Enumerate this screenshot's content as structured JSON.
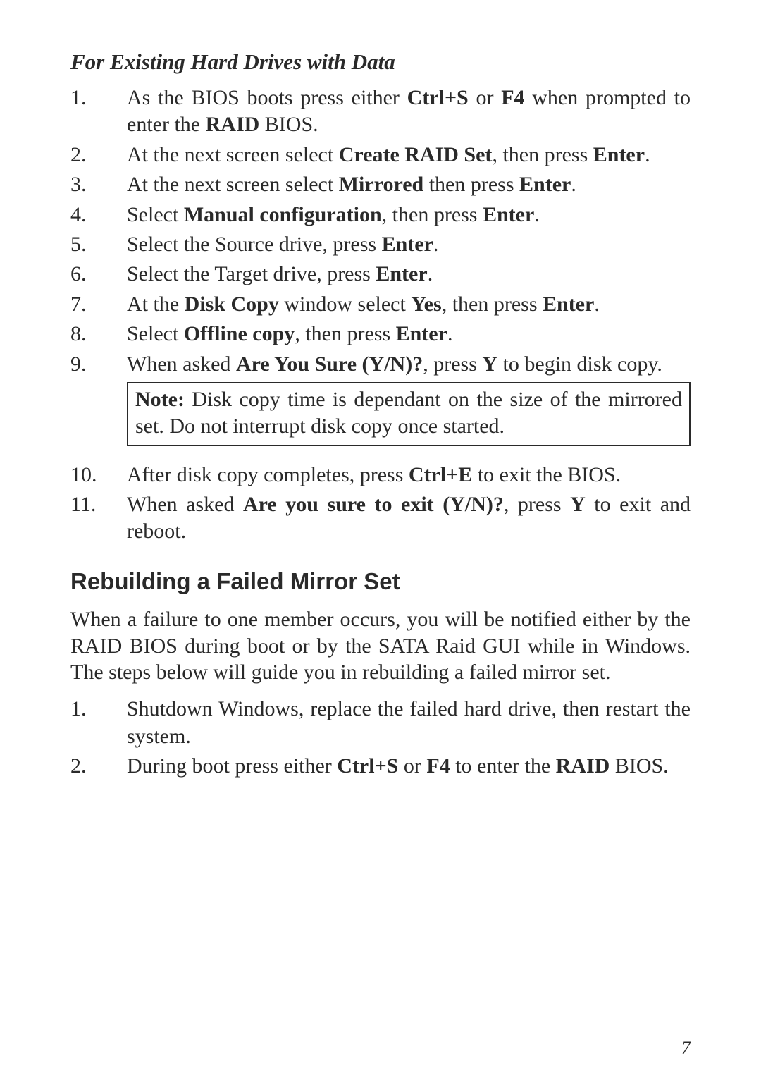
{
  "colors": {
    "background": "#ffffff",
    "text": "#2a2a2a",
    "border": "#2a2a2a"
  },
  "typography": {
    "body_family": "Palatino Linotype",
    "heading_family": "Arial",
    "body_size_pt": 30,
    "heading_size_pt": 33,
    "subheading_size_pt": 31
  },
  "subheading": "For Existing Hard Drives with Data",
  "listA": [
    {
      "n": "1.",
      "html": "As the BIOS boots press either <b>Ctrl+S</b> or <b>F4</b> when prompted to enter the <b>RAID</b> BIOS."
    },
    {
      "n": "2.",
      "html": "At the next screen select <b>Create RAID Set</b>, then press <b>Enter</b>."
    },
    {
      "n": "3.",
      "html": "At the next screen select <b>Mirrored</b> then press <b>Enter</b>."
    },
    {
      "n": "4.",
      "html": "Select <b>Manual configuration</b>, then press <b>Enter</b>."
    },
    {
      "n": "5.",
      "html": "Select the Source drive, press <b>Enter</b>."
    },
    {
      "n": "6.",
      "html": "Select the Target drive, press <b>Enter</b>."
    },
    {
      "n": "7.",
      "html": "At the <b>Disk Copy</b> window select <b>Yes</b>, then press <b>Enter</b>."
    },
    {
      "n": "8.",
      "html": "Select <b>Offline copy</b>, then press <b>Enter</b>."
    },
    {
      "n": "9.",
      "html": "When asked <b>Are You Sure (Y/N)?</b>, press <b>Y</b> to begin disk copy."
    }
  ],
  "note": "<b>Note:</b>  Disk copy time is dependant on the size of the mirrored set.  Do not interrupt disk copy once started.",
  "listB": [
    {
      "n": "10.",
      "html": "After disk copy completes, press <b>Ctrl+E</b> to exit the BIOS."
    },
    {
      "n": "11.",
      "html": "When asked <b>Are you sure to exit (Y/N)?</b>, press <b>Y</b> to exit and reboot."
    }
  ],
  "sectionHeading": "Rebuilding a Failed Mirror Set",
  "sectionPara": "When a failure to one member occurs, you will be notified either by the RAID BIOS during boot or by the SATA Raid GUI while in Windows.  The steps below will guide you in rebuilding a failed mirror set.",
  "listC": [
    {
      "n": "1.",
      "html": "Shutdown Windows, replace the failed hard drive, then restart the system."
    },
    {
      "n": "2.",
      "html": "During boot press either <b>Ctrl+S</b> or <b>F4</b> to enter the <b>RAID</b> BIOS."
    }
  ],
  "pageNumber": "7"
}
